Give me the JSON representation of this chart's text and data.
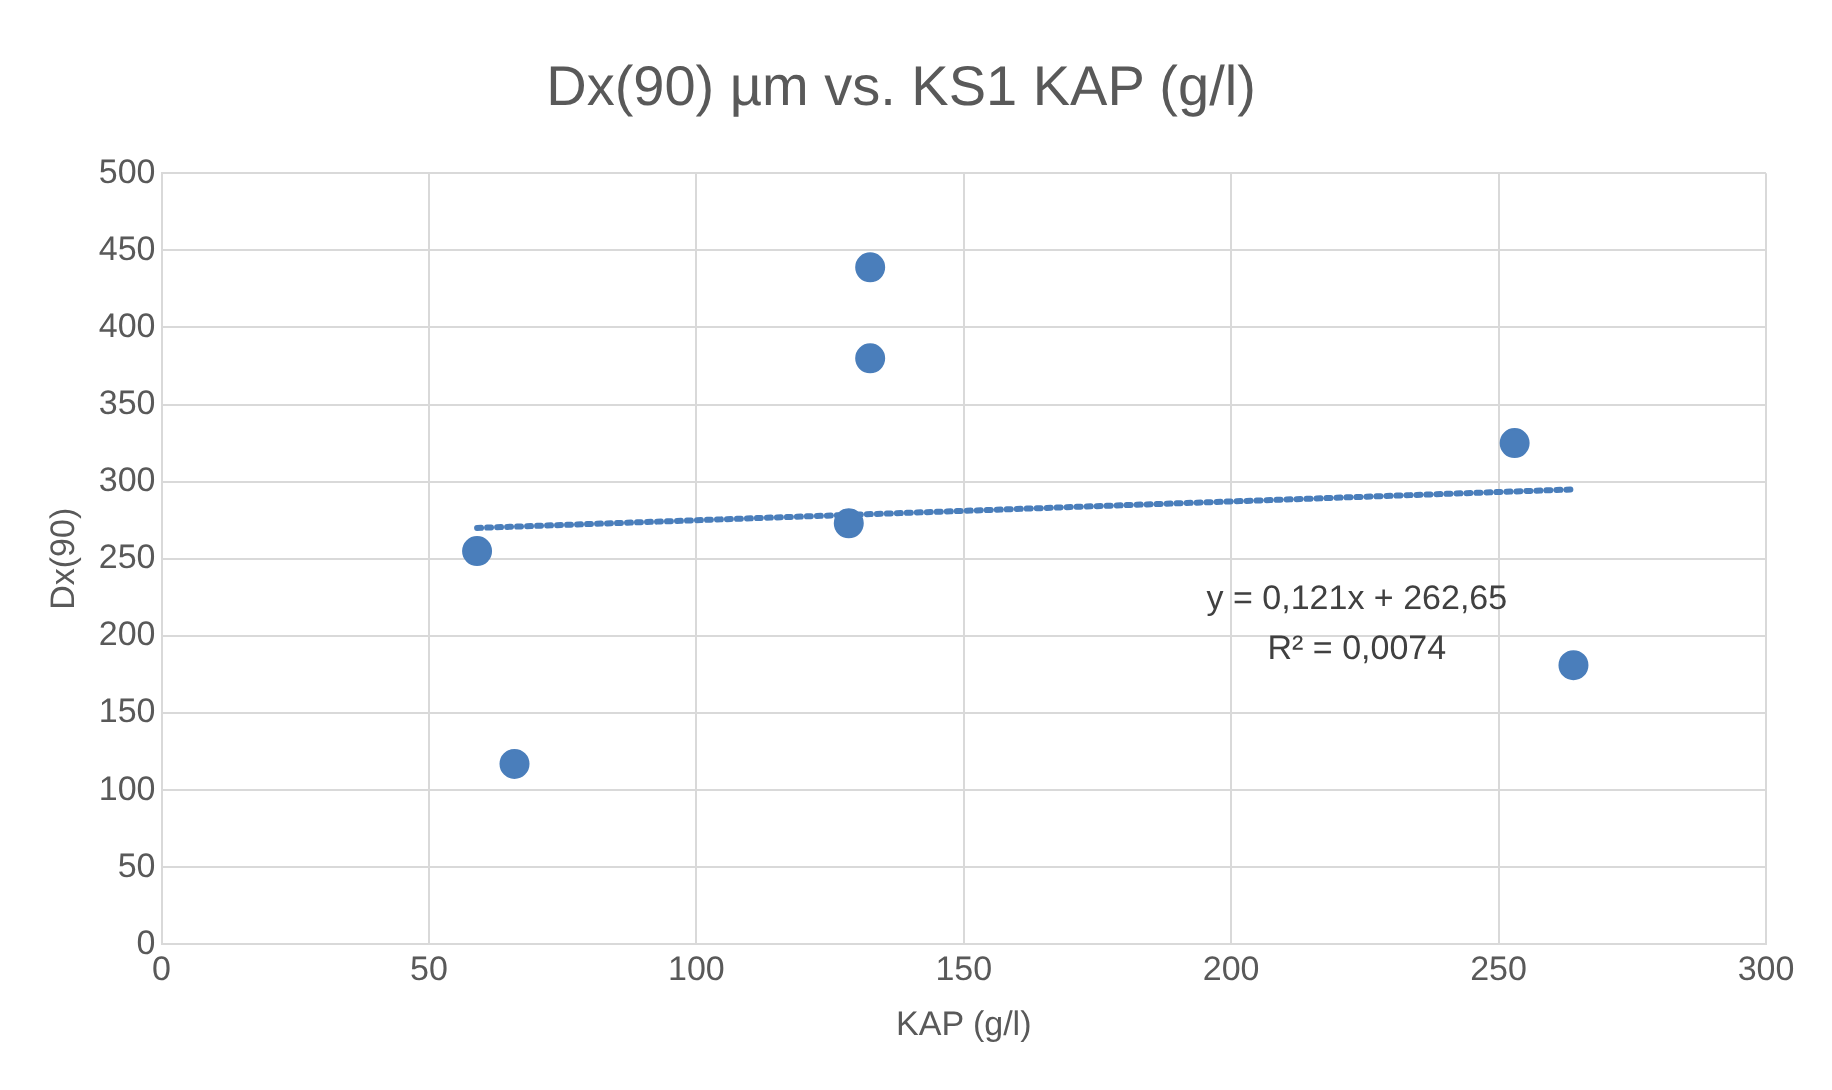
{
  "chart_data": {
    "type": "scatter",
    "title": "Dx(90) µm vs. KS1 KAP (g/l)",
    "xlabel": "KAP (g/l)",
    "ylabel": "Dx(90)",
    "series": [
      {
        "type": "scatter",
        "color": "#4a7ebb",
        "x": [
          59,
          66,
          128.5,
          132.5,
          132.5,
          253,
          264
        ],
        "values": [
          255,
          117,
          273,
          439,
          380,
          325,
          181
        ]
      },
      {
        "type": "line",
        "color": "#4a7ebb",
        "line_style": "dotted",
        "marker": "none",
        "x": [
          59,
          264
        ],
        "values": [
          270,
          295
        ]
      }
    ],
    "annotations": [
      "y = 0,121x + 262,65",
      "R² = 0,0074"
    ],
    "xlim": [
      0,
      300
    ],
    "xticks": [
      0,
      50,
      100,
      150,
      200,
      250,
      300
    ],
    "ylim": [
      0,
      500
    ],
    "yticks": [
      0,
      50,
      100,
      150,
      200,
      250,
      300,
      350,
      400,
      450,
      500
    ],
    "grid": true,
    "legend": false,
    "marker": "circle"
  }
}
